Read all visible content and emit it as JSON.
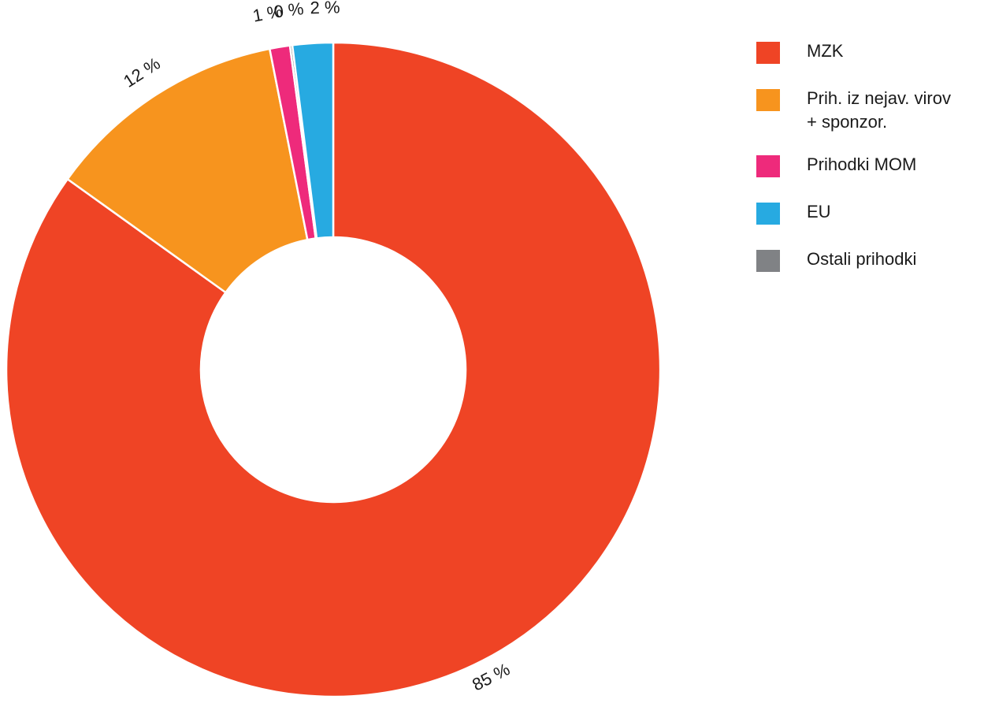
{
  "chart_data": {
    "type": "pie",
    "donut": true,
    "legend_position": "right",
    "slices": [
      {
        "name": "MZK",
        "value": 85,
        "label": "85 %",
        "color": "#ef4425"
      },
      {
        "name": "Prih. iz nejav. virov + sponzor.",
        "value": 12,
        "label": "12 %",
        "color": "#f7941e"
      },
      {
        "name": "Prihodki MOM",
        "value": 1,
        "label": "1 %",
        "color": "#ee2a7b"
      },
      {
        "name": "Ostali prihodki",
        "value": 0,
        "label": "0 %",
        "color": "#808285"
      },
      {
        "name": "EU",
        "value": 2,
        "label": "2 %",
        "color": "#27aae1"
      }
    ]
  },
  "legend": {
    "items": [
      {
        "line1": "MZK",
        "line2": "",
        "color": "#ef4425"
      },
      {
        "line1": "Prih. iz nejav. virov",
        "line2": "+ sponzor.",
        "color": "#f7941e"
      },
      {
        "line1": "Prihodki MOM",
        "line2": "",
        "color": "#ee2a7b"
      },
      {
        "line1": "EU",
        "line2": "",
        "color": "#27aae1"
      },
      {
        "line1": "Ostali prihodki",
        "line2": "",
        "color": "#808285"
      }
    ]
  }
}
